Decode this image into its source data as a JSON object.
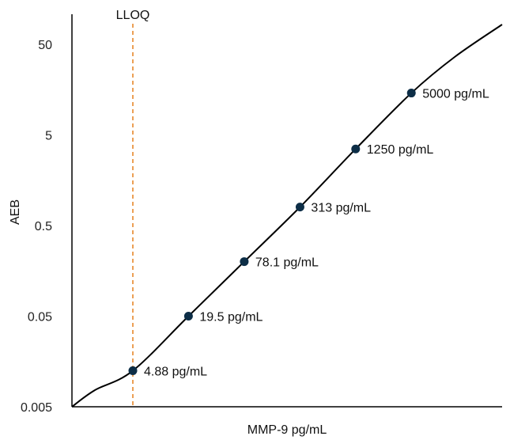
{
  "chart_data": {
    "type": "line",
    "title": "",
    "xlabel": "MMP-9 pg/mL",
    "ylabel": "AEB",
    "y_scale": "log",
    "ylim": [
      0.005,
      100
    ],
    "yticks": [
      0.005,
      0.05,
      0.5,
      5,
      50
    ],
    "ytick_labels": [
      "0.005",
      "0.05",
      "0.5",
      "5",
      "50"
    ],
    "x_ticks_shown": false,
    "grid": false,
    "reference_line": {
      "label": "LLOQ",
      "x": 4.88,
      "color": "#e8892b",
      "style": "dashed"
    },
    "series": [
      {
        "points": [
          {
            "x": 4.88,
            "y": 0.0125,
            "label": "4.88 pg/mL"
          },
          {
            "x": 19.5,
            "y": 0.05,
            "label": "19.5 pg/mL"
          },
          {
            "x": 78.1,
            "y": 0.2,
            "label": "78.1 pg/mL"
          },
          {
            "x": 313,
            "y": 0.8,
            "label": "313 pg/mL"
          },
          {
            "x": 1250,
            "y": 3.5,
            "label": "1250 pg/mL"
          },
          {
            "x": 5000,
            "y": 14.5,
            "label": "5000 pg/mL"
          }
        ],
        "line_color": "#000000",
        "marker_color": "#0d2e47"
      }
    ]
  }
}
